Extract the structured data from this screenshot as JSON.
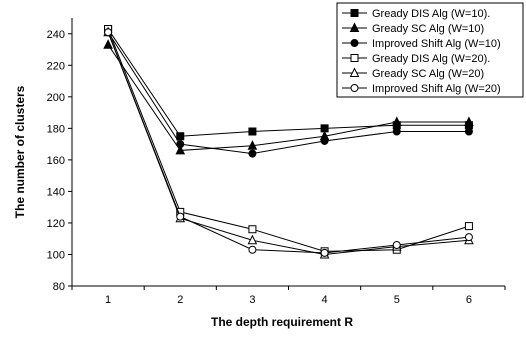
{
  "chart_data": {
    "type": "line",
    "xlabel": "The depth requirement R",
    "ylabel": "The number of clusters",
    "x": [
      1,
      2,
      3,
      4,
      5,
      6
    ],
    "xticks": [
      "1",
      "2",
      "3",
      "4",
      "5",
      "6"
    ],
    "ylim": [
      80,
      250
    ],
    "yticks": [
      "80",
      "100",
      "120",
      "140",
      "160",
      "180",
      "200",
      "220",
      "240"
    ],
    "ytick_values": [
      80,
      100,
      120,
      140,
      160,
      180,
      200,
      220,
      240
    ],
    "grid": false,
    "legend_position": "top-right",
    "series": [
      {
        "name": "Gready DIS Alg (W=10).",
        "marker": "square-filled",
        "values": [
          243,
          175,
          178,
          180,
          182,
          182
        ]
      },
      {
        "name": "Gready SC Alg (W=10)",
        "marker": "triangle-filled",
        "values": [
          233,
          166,
          169,
          175,
          184,
          184
        ]
      },
      {
        "name": "Improved Shift Alg (W=10)",
        "marker": "circle-filled",
        "values": [
          241,
          170,
          164,
          172,
          178,
          178
        ]
      },
      {
        "name": "Gready DIS Alg (W=20).",
        "marker": "square-open",
        "values": [
          243,
          127,
          116,
          102,
          103,
          118
        ]
      },
      {
        "name": "Gready SC Alg (W=20)",
        "marker": "triangle-open",
        "values": [
          241,
          123,
          109,
          100,
          105,
          109
        ]
      },
      {
        "name": "Improved Shift Alg (W=20)",
        "marker": "circle-open",
        "values": [
          241,
          124,
          103,
          101,
          106,
          111
        ]
      }
    ]
  }
}
